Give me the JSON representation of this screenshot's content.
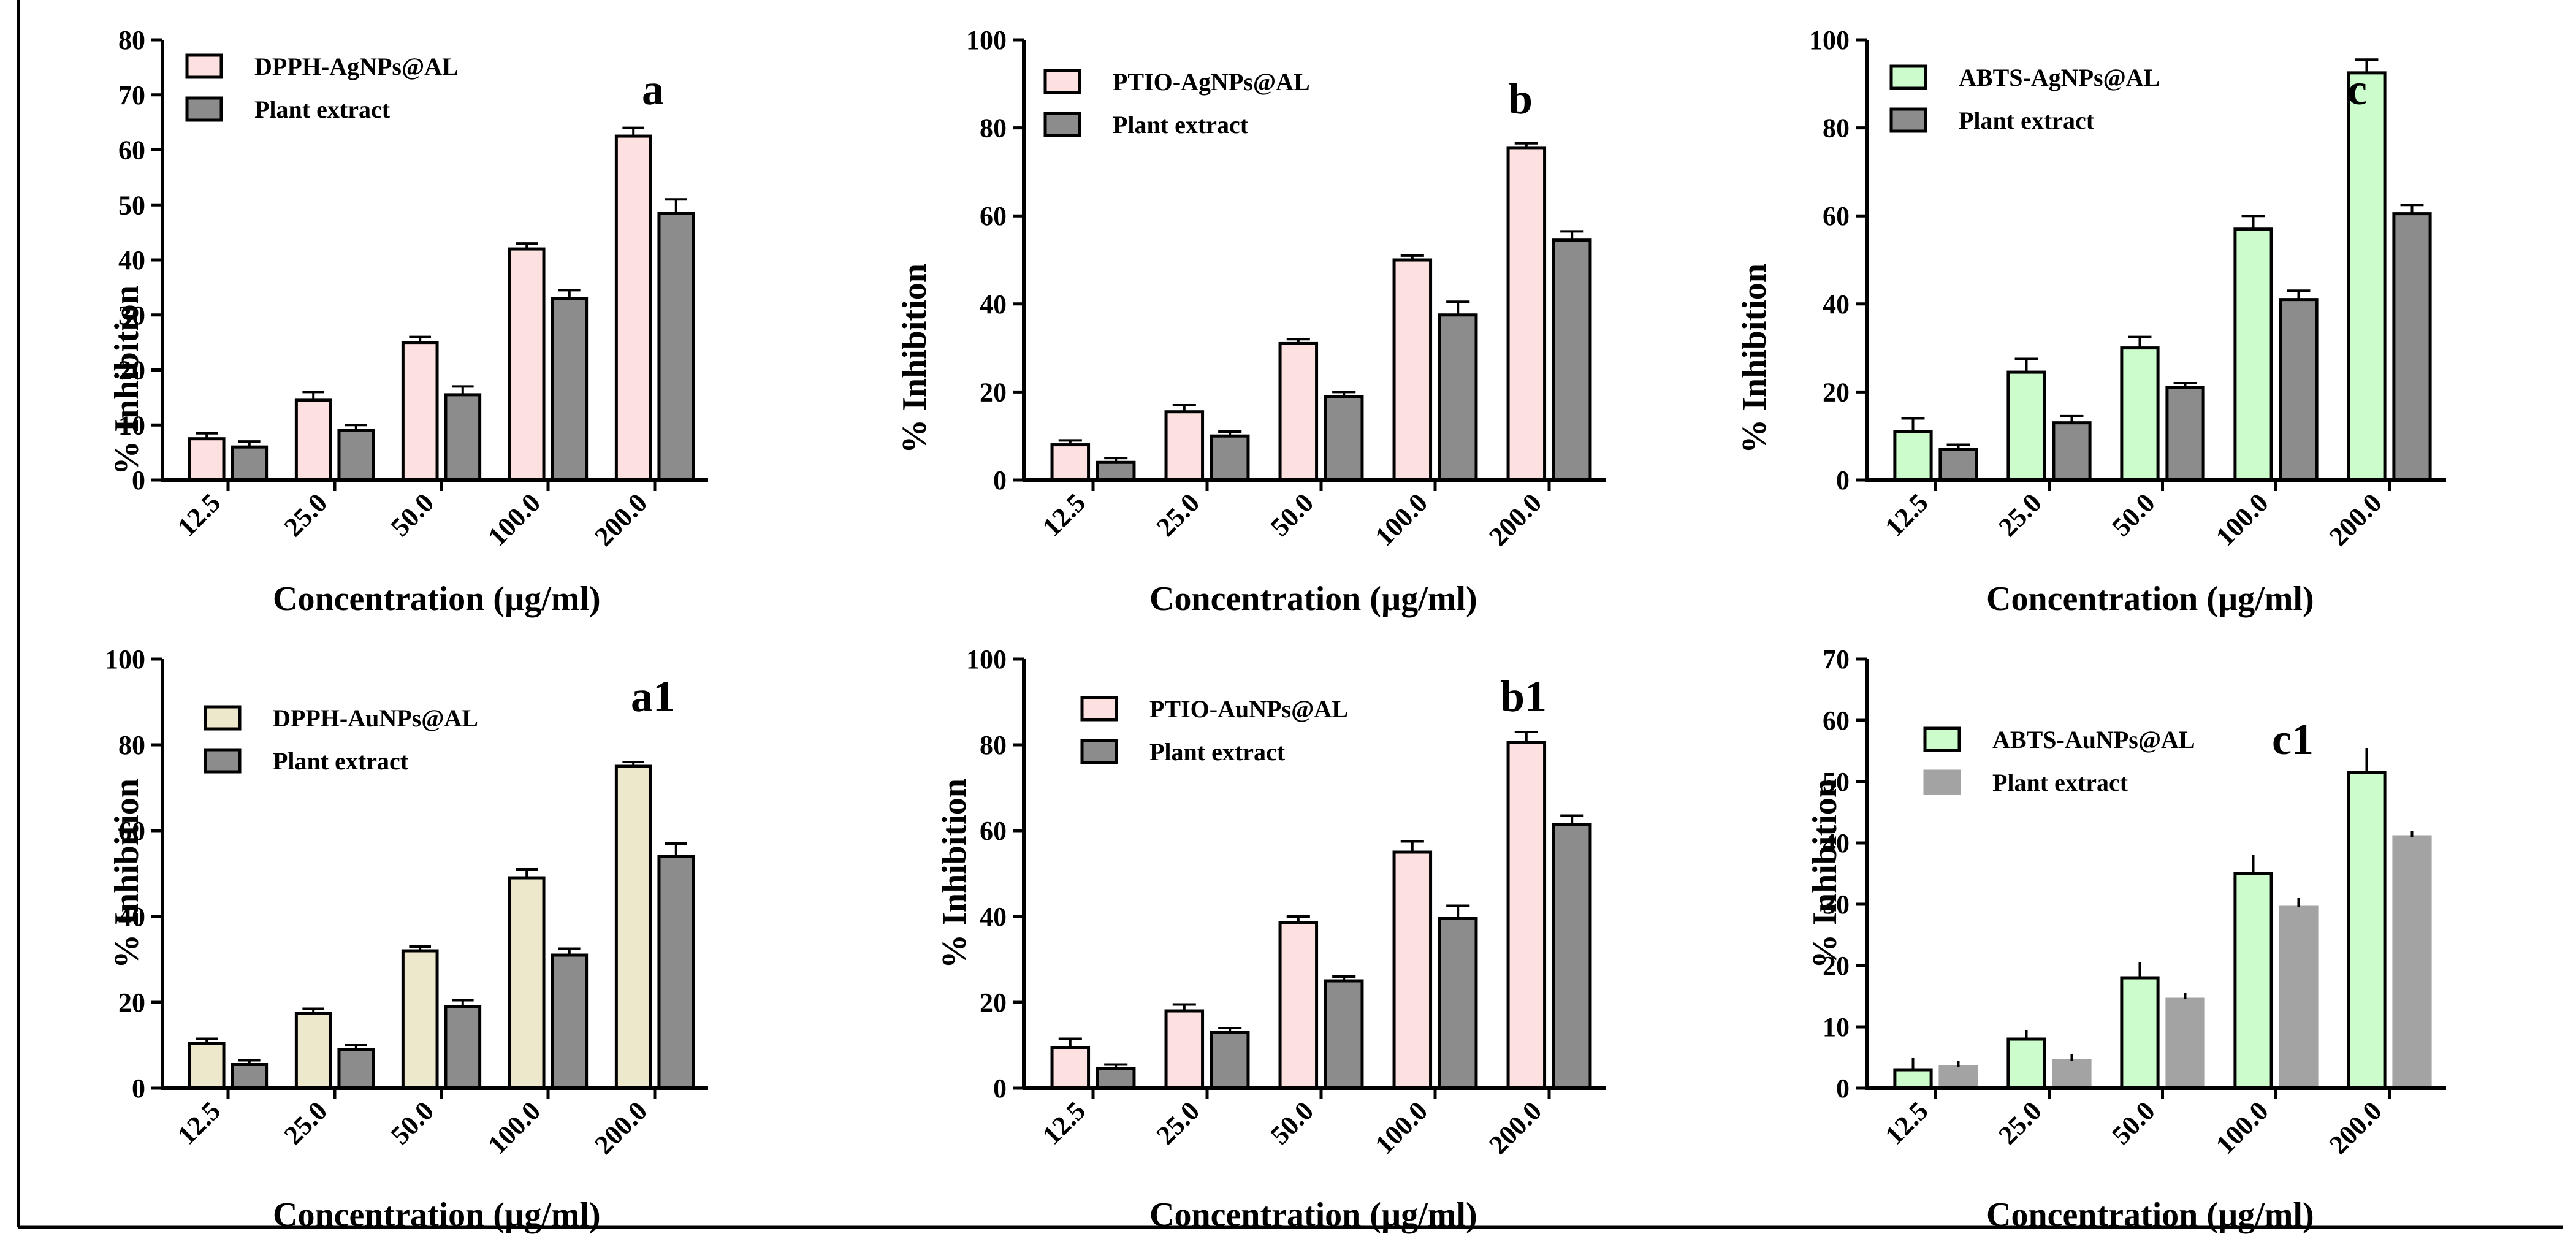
{
  "chart_data": [
    {
      "type": "bar",
      "panel_label": "a",
      "categories": [
        "12.5",
        "25.0",
        "50.0",
        "100.0",
        "200.0"
      ],
      "series": [
        {
          "name": "DPPH-AgNPs@AL",
          "color": "#fde0e0",
          "values": [
            7.5,
            14.5,
            25,
            42,
            62.5
          ],
          "errors": [
            1,
            1.5,
            1,
            1,
            1.5
          ]
        },
        {
          "name": "Plant extract",
          "color": "#8c8c8c",
          "values": [
            6,
            9,
            15.5,
            33,
            48.5
          ],
          "errors": [
            1,
            1,
            1.5,
            1.5,
            2.5
          ]
        }
      ],
      "ylabel": "% Inhibition",
      "xlabel": "Concentration (µg/ml)",
      "yticks": [
        "0",
        "10",
        "20",
        "30",
        "40",
        "50",
        "60",
        "70",
        "80"
      ],
      "ylim": [
        0,
        80
      ],
      "error_caps": true
    },
    {
      "type": "bar",
      "panel_label": "b",
      "categories": [
        "12.5",
        "25.0",
        "50.0",
        "100.0",
        "200.0"
      ],
      "series": [
        {
          "name": "PTIO-AgNPs@AL",
          "color": "#fde0e0",
          "values": [
            8,
            15.5,
            31,
            50,
            75.5
          ],
          "errors": [
            1,
            1.5,
            1,
            1,
            1
          ]
        },
        {
          "name": "Plant extract",
          "color": "#8c8c8c",
          "values": [
            4,
            10,
            19,
            37.5,
            54.5
          ],
          "errors": [
            1,
            1,
            1,
            3,
            2
          ]
        }
      ],
      "ylabel": "% Inhibition",
      "xlabel": "Concentration (µg/ml)",
      "yticks": [
        "0",
        "20",
        "40",
        "60",
        "80",
        "100"
      ],
      "ylim": [
        0,
        100
      ],
      "error_caps": true
    },
    {
      "type": "bar",
      "panel_label": "c",
      "categories": [
        "12.5",
        "25.0",
        "50.0",
        "100.0",
        "200.0"
      ],
      "series": [
        {
          "name": "ABTS-AgNPs@AL",
          "color": "#ccfccc",
          "values": [
            11,
            24.5,
            30,
            57,
            92.5
          ],
          "errors": [
            3,
            3,
            2.5,
            3,
            3
          ]
        },
        {
          "name": "Plant extract",
          "color": "#8c8c8c",
          "values": [
            7,
            13,
            21,
            41,
            60.5
          ],
          "errors": [
            1,
            1.5,
            1,
            2,
            2
          ]
        }
      ],
      "ylabel": "% Inhibition",
      "xlabel": "Concentration (µg/ml)",
      "yticks": [
        "0",
        "20",
        "40",
        "60",
        "80",
        "100"
      ],
      "ylim": [
        0,
        100
      ],
      "error_caps": true
    },
    {
      "type": "bar",
      "panel_label": "a1",
      "categories": [
        "12.5",
        "25.0",
        "50.0",
        "100.0",
        "200.0"
      ],
      "series": [
        {
          "name": "DPPH-AuNPs@AL",
          "color": "#ede8cc",
          "values": [
            10.5,
            17.5,
            32,
            49,
            75
          ],
          "errors": [
            1,
            1,
            1,
            2,
            1
          ]
        },
        {
          "name": "Plant extract",
          "color": "#8c8c8c",
          "values": [
            5.5,
            9,
            19,
            31,
            54
          ],
          "errors": [
            1,
            1,
            1.5,
            1.5,
            3
          ]
        }
      ],
      "ylabel": "% Inhibition",
      "xlabel": "Concentration (µg/ml)",
      "yticks": [
        "0",
        "20",
        "40",
        "60",
        "80",
        "100"
      ],
      "ylim": [
        0,
        100
      ],
      "error_caps": true
    },
    {
      "type": "bar",
      "panel_label": "b1",
      "categories": [
        "12.5",
        "25.0",
        "50.0",
        "100.0",
        "200.0"
      ],
      "series": [
        {
          "name": "PTIO-AuNPs@AL",
          "color": "#fde0e0",
          "values": [
            9.5,
            18,
            38.5,
            55,
            80.5
          ],
          "errors": [
            2,
            1.5,
            1.5,
            2.5,
            2.5
          ]
        },
        {
          "name": "Plant extract",
          "color": "#8c8c8c",
          "values": [
            4.5,
            13,
            25,
            39.5,
            61.5
          ],
          "errors": [
            1,
            1,
            1,
            3,
            2
          ]
        }
      ],
      "ylabel": "% Inhibition",
      "xlabel": "Concentration (µg/ml)",
      "yticks": [
        "0",
        "20",
        "40",
        "60",
        "80",
        "100"
      ],
      "ylim": [
        0,
        100
      ],
      "error_caps": true
    },
    {
      "type": "bar",
      "panel_label": "c1",
      "categories": [
        "12.5",
        "25.0",
        "50.0",
        "100.0",
        "200.0"
      ],
      "series": [
        {
          "name": "ABTS-AuNPs@AL",
          "color": "#ccfccc",
          "values": [
            3,
            8,
            18,
            35,
            51.5
          ],
          "errors": [
            2,
            1.5,
            2.5,
            3,
            4
          ]
        },
        {
          "name": "Plant extract",
          "color": "#a3a3a3",
          "values": [
            3.5,
            4.5,
            14.5,
            29.5,
            41
          ],
          "errors": [
            1,
            1,
            1,
            1.5,
            1
          ]
        }
      ],
      "ylabel": "% Inhibition",
      "xlabel": "Concentration (µg/ml)",
      "yticks": [
        "0",
        "10",
        "20",
        "30",
        "40",
        "50",
        "60",
        "70"
      ],
      "ylim": [
        0,
        70
      ],
      "error_caps": false
    }
  ]
}
